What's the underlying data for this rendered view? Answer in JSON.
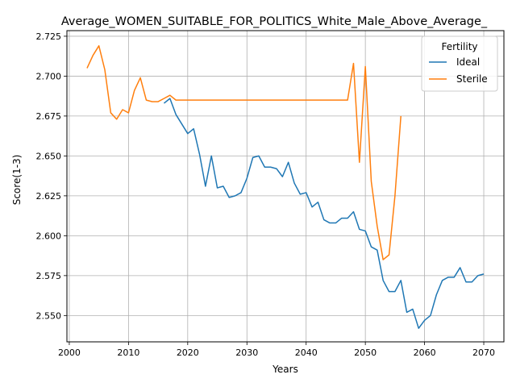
{
  "chart_data": {
    "type": "line",
    "title": "Average_WOMEN_SUITABLE_FOR_POLITICS_White_Male_Above_Average_",
    "xlabel": "Years",
    "ylabel": "Score(1-3)",
    "xlim": [
      1999.6,
      2073.4
    ],
    "ylim": [
      2.5335,
      2.7285
    ],
    "xticks": [
      2000,
      2010,
      2020,
      2030,
      2040,
      2050,
      2060,
      2070
    ],
    "yticks": [
      2.55,
      2.575,
      2.6,
      2.625,
      2.65,
      2.675,
      2.7,
      2.725
    ],
    "grid": true,
    "legend": {
      "title": "Fertility",
      "placement": "top-right"
    },
    "series": [
      {
        "name": "Ideal",
        "color": "#1f77b4",
        "x": [
          2016,
          2017,
          2018,
          2019,
          2020,
          2021,
          2022,
          2023,
          2024,
          2025,
          2026,
          2027,
          2028,
          2029,
          2030,
          2031,
          2032,
          2033,
          2034,
          2035,
          2036,
          2037,
          2038,
          2039,
          2040,
          2041,
          2042,
          2043,
          2044,
          2045,
          2046,
          2047,
          2048,
          2049,
          2050,
          2051,
          2052,
          2053,
          2054,
          2055,
          2056,
          2057,
          2058,
          2059,
          2060,
          2061,
          2062,
          2063,
          2064,
          2065,
          2066,
          2067,
          2068,
          2069,
          2070
        ],
        "y": [
          2.683,
          2.686,
          2.676,
          2.67,
          2.664,
          2.667,
          2.651,
          2.631,
          2.65,
          2.63,
          2.631,
          2.624,
          2.625,
          2.627,
          2.636,
          2.649,
          2.65,
          2.643,
          2.643,
          2.642,
          2.637,
          2.646,
          2.633,
          2.626,
          2.627,
          2.618,
          2.621,
          2.61,
          2.608,
          2.608,
          2.611,
          2.611,
          2.615,
          2.604,
          2.603,
          2.593,
          2.591,
          2.572,
          2.565,
          2.565,
          2.572,
          2.552,
          2.554,
          2.542,
          2.547,
          2.55,
          2.563,
          2.572,
          2.574,
          2.574,
          2.58,
          2.571,
          2.571,
          2.575,
          2.576
        ]
      },
      {
        "name": "Sterile",
        "color": "#ff7f0e",
        "x": [
          2003,
          2004,
          2005,
          2006,
          2007,
          2008,
          2009,
          2010,
          2011,
          2012,
          2013,
          2014,
          2015,
          2016,
          2017,
          2018,
          2019,
          2020,
          2021,
          2022,
          2023,
          2024,
          2025,
          2026,
          2027,
          2028,
          2029,
          2030,
          2031,
          2032,
          2033,
          2034,
          2035,
          2036,
          2037,
          2038,
          2039,
          2040,
          2041,
          2042,
          2043,
          2044,
          2045,
          2046,
          2047,
          2048,
          2049,
          2050,
          2051,
          2052,
          2053,
          2054,
          2055,
          2056
        ],
        "y": [
          2.705,
          2.713,
          2.719,
          2.704,
          2.677,
          2.673,
          2.679,
          2.677,
          2.691,
          2.699,
          2.685,
          2.684,
          2.684,
          2.686,
          2.688,
          2.685,
          2.685,
          2.685,
          2.685,
          2.685,
          2.685,
          2.685,
          2.685,
          2.685,
          2.685,
          2.685,
          2.685,
          2.685,
          2.685,
          2.685,
          2.685,
          2.685,
          2.685,
          2.685,
          2.685,
          2.685,
          2.685,
          2.685,
          2.685,
          2.685,
          2.685,
          2.685,
          2.685,
          2.685,
          2.685,
          2.708,
          2.646,
          2.706,
          2.634,
          2.606,
          2.585,
          2.588,
          2.625,
          2.675
        ]
      }
    ]
  }
}
